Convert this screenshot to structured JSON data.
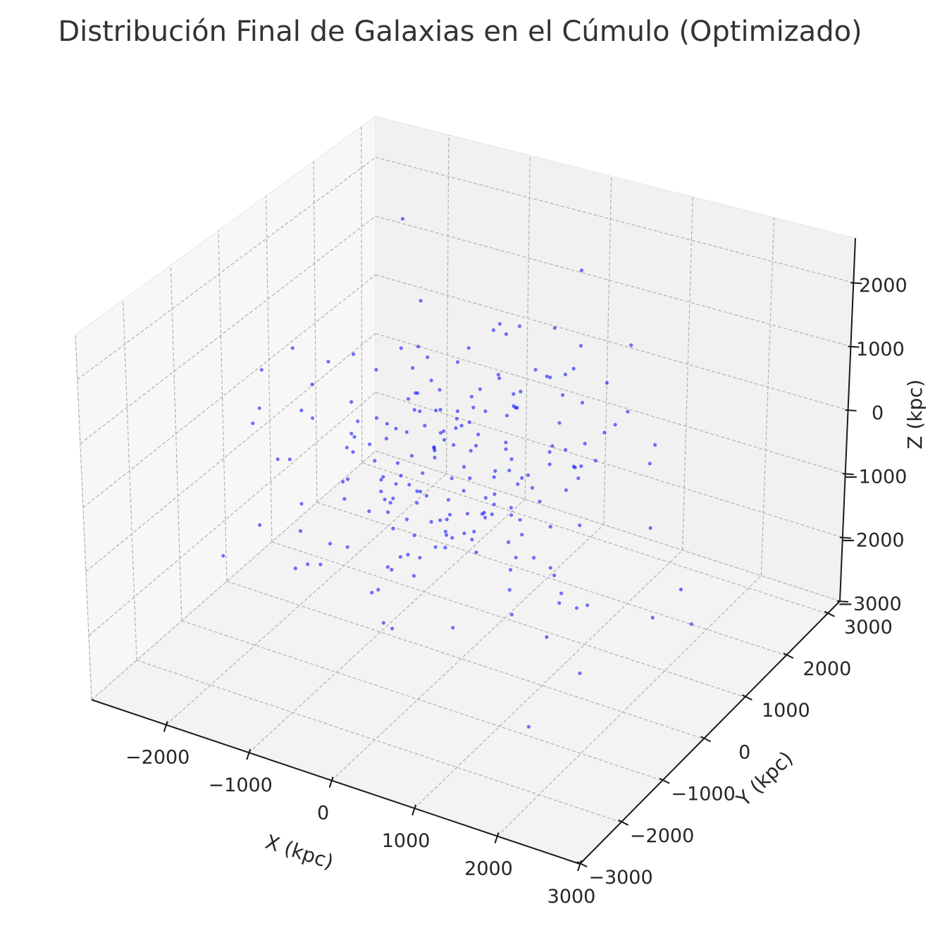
{
  "chart_data": {
    "type": "scatter",
    "title": "Distribución Final de Galaxias en el Cúmulo (Optimizado)",
    "xlabel": "X (kpc)",
    "ylabel": "Y (kpc)",
    "zlabel": "Z (kpc)",
    "xlim": [
      -2900,
      3000
    ],
    "ylim": [
      -3000,
      3300
    ],
    "zlim": [
      -3000,
      2700
    ],
    "x_ticks": [
      -2000,
      -1000,
      0,
      1000,
      2000,
      3000
    ],
    "y_ticks": [
      -3000,
      -2000,
      -1000,
      0,
      1000,
      2000,
      3000
    ],
    "z_ticks": [
      -3000,
      -2000,
      -1000,
      0,
      1000,
      2000
    ],
    "x_tick_labels": [
      "−2000",
      "−1000",
      "0",
      "1000",
      "2000",
      "3000"
    ],
    "y_tick_labels": [
      "−3000",
      "−2000",
      "−1000",
      "0",
      "1000",
      "2000",
      "3000"
    ],
    "z_tick_labels": [
      "−3000",
      "−2000",
      "−1000",
      "0",
      "1000",
      "2000"
    ],
    "grid": true,
    "marker_color": "#0000ff",
    "pane_colors": {
      "left": "#f7f7f7",
      "back": "#f1f1f1",
      "floor": "#f3f3f3"
    },
    "points": []
  }
}
